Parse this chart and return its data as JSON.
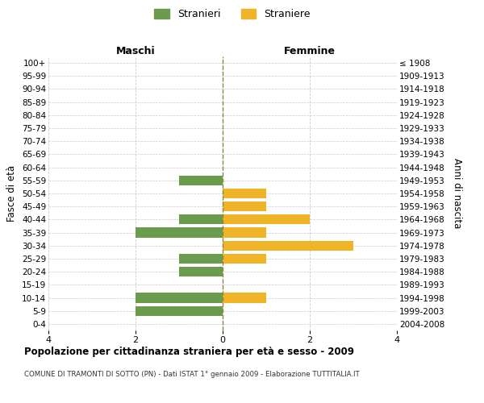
{
  "age_groups": [
    "0-4",
    "5-9",
    "10-14",
    "15-19",
    "20-24",
    "25-29",
    "30-34",
    "35-39",
    "40-44",
    "45-49",
    "50-54",
    "55-59",
    "60-64",
    "65-69",
    "70-74",
    "75-79",
    "80-84",
    "85-89",
    "90-94",
    "95-99",
    "100+"
  ],
  "birth_years": [
    "2004-2008",
    "1999-2003",
    "1994-1998",
    "1989-1993",
    "1984-1988",
    "1979-1983",
    "1974-1978",
    "1969-1973",
    "1964-1968",
    "1959-1963",
    "1954-1958",
    "1949-1953",
    "1944-1948",
    "1939-1943",
    "1934-1938",
    "1929-1933",
    "1924-1928",
    "1919-1923",
    "1914-1918",
    "1909-1913",
    "≤ 1908"
  ],
  "maschi": [
    0,
    2,
    2,
    0,
    1,
    1,
    0,
    2,
    1,
    0,
    0,
    1,
    0,
    0,
    0,
    0,
    0,
    0,
    0,
    0,
    0
  ],
  "femmine": [
    0,
    0,
    1,
    0,
    0,
    1,
    3,
    1,
    2,
    1,
    1,
    0,
    0,
    0,
    0,
    0,
    0,
    0,
    0,
    0,
    0
  ],
  "color_maschi": "#6b9c4e",
  "color_femmine": "#f0b429",
  "background_color": "#ffffff",
  "grid_color": "#cccccc",
  "center_line_color": "#888840",
  "title": "Popolazione per cittadinanza straniera per età e sesso - 2009",
  "subtitle": "COMUNE DI TRAMONTI DI SOTTO (PN) - Dati ISTAT 1° gennaio 2009 - Elaborazione TUTTITALIA.IT",
  "ylabel_left": "Fasce di età",
  "ylabel_right": "Anni di nascita",
  "xlabel_maschi": "Maschi",
  "xlabel_femmine": "Femmine",
  "legend_maschi": "Stranieri",
  "legend_femmine": "Straniere",
  "xlim": 4
}
